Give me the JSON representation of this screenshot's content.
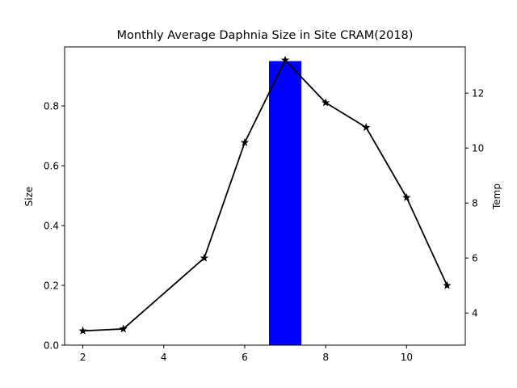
{
  "chart_data": {
    "type": "bar",
    "title": "Monthly Average Daphnia Size in Site CRAM(2018)",
    "xlabel": "",
    "ylabel": "Size",
    "y2label": "Temp",
    "xlim": [
      1.55,
      11.45
    ],
    "ylim": [
      0,
      0.9975
    ],
    "y2lim": [
      2.83,
      13.68
    ],
    "xticks": [
      2,
      4,
      6,
      8,
      10
    ],
    "yticks": [
      0.0,
      0.2,
      0.4,
      0.6,
      0.8
    ],
    "y2ticks": [
      4,
      6,
      8,
      10,
      12
    ],
    "grid": false,
    "bar_series": {
      "axis": "left",
      "color": "#0000ff",
      "bar_width": 0.8,
      "x": [
        7
      ],
      "values": [
        0.95
      ]
    },
    "line_series": {
      "axis": "right",
      "color": "#000000",
      "marker": "star",
      "x": [
        2,
        3,
        5,
        6,
        7,
        8,
        9,
        10,
        11
      ],
      "values": [
        3.35,
        3.42,
        6.0,
        10.2,
        13.2,
        11.65,
        10.75,
        8.2,
        5.0
      ]
    }
  }
}
